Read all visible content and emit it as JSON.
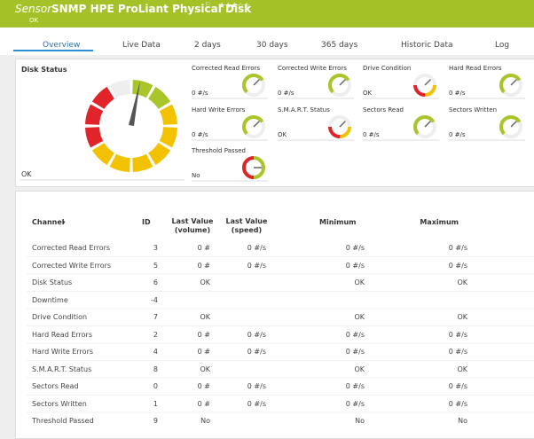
{
  "header": {
    "sensor_label": "Sensor",
    "title": "SNMP HPE ProLiant Physical Disk",
    "status": "OK"
  },
  "tabs": [
    "Overview",
    "Live Data",
    "2 days",
    "30 days",
    "365 days",
    "Historic Data",
    "Log"
  ],
  "overview": {
    "main": {
      "name": "Disk Status",
      "value": "OK"
    },
    "gauges": [
      {
        "name": "Corrected Read Errors",
        "value": "0 #/s"
      },
      {
        "name": "Corrected Write Errors",
        "value": "0 #/s"
      },
      {
        "name": "Drive Condition",
        "value": "OK"
      },
      {
        "name": "Hard Read Errors",
        "value": "0 #/s"
      },
      {
        "name": "Hard Write Errors",
        "value": "0 #/s"
      },
      {
        "name": "S.M.A.R.T. Status",
        "value": "OK"
      },
      {
        "name": "Sectors Read",
        "value": "0 #/s"
      },
      {
        "name": "Sectors Written",
        "value": "0 #/s"
      },
      {
        "name": "Threshold Passed",
        "value": "No"
      }
    ]
  },
  "table": {
    "columns": [
      "Channel",
      "ID",
      "Last Value (volume)",
      "Last Value (speed)",
      "Minimum",
      "Maximum"
    ],
    "rows": [
      [
        "Corrected Read Errors",
        3,
        "0 #",
        "0 #/s",
        "0 #/s",
        "0 #/s"
      ],
      [
        "Corrected Write Errors",
        5,
        "0 #",
        "0 #/s",
        "0 #/s",
        "0 #/s"
      ],
      [
        "Disk Status",
        6,
        "OK",
        null,
        "OK",
        "OK"
      ],
      [
        "Downtime",
        -4,
        null,
        null,
        null,
        null
      ],
      [
        "Drive Condition",
        7,
        "OK",
        null,
        "OK",
        "OK"
      ],
      [
        "Hard Read Errors",
        2,
        "0 #",
        "0 #/s",
        "0 #/s",
        "0 #/s"
      ],
      [
        "Hard Write Errors",
        4,
        "0 #",
        "0 #/s",
        "0 #/s",
        "0 #/s"
      ],
      [
        "S.M.A.R.T. Status",
        8,
        "OK",
        null,
        "OK",
        "OK"
      ],
      [
        "Sectors Read",
        0,
        "0 #",
        "0 #/s",
        "0 #/s",
        "0 #/s"
      ],
      [
        "Sectors Written",
        1,
        "0 #",
        "0 #/s",
        "0 #/s",
        "0 #/s"
      ],
      [
        "Threshold Passed",
        9,
        "No",
        null,
        "No",
        "No"
      ]
    ]
  }
}
